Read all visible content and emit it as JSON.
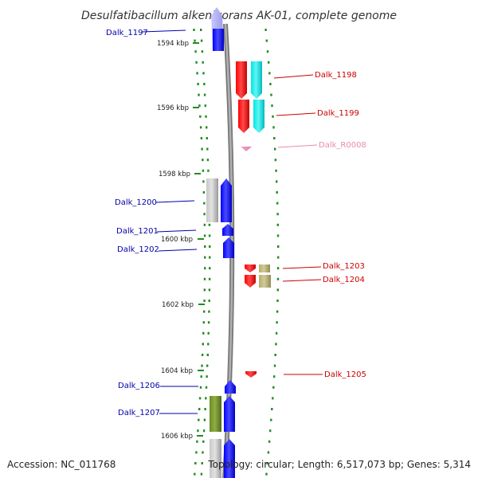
{
  "title": "Desulfatibacillum alkenivorans AK-01, complete genome",
  "footer": {
    "accession": "Accession: NC_011768",
    "topology": "Topology: circular; Length: 6,517,073 bp; Genes: 5,314"
  },
  "ticks": [
    "1594 kbp",
    "1596 kbp",
    "1598 kbp",
    "1600 kbp",
    "1602 kbp",
    "1604 kbp",
    "1606 kbp"
  ],
  "colors": {
    "minus_strand_label": "#0000aa",
    "plus_strand_label": "#cc0000",
    "rna_label": "#e88ab0",
    "blue_gene": "#0000ff",
    "red_gene": "#ff0000",
    "cyan_gene": "#00e5e5",
    "gray_gene": "#b3b3b3",
    "olive_gene": "#6e8b2a",
    "khaki_gene": "#b5ad72",
    "pink_rna": "#f2a6c8",
    "dash_green": "#228b22",
    "backbone": "#888888"
  },
  "genes": [
    {
      "label": "Dalk_1197",
      "strand": "minus"
    },
    {
      "label": "Dalk_1198",
      "strand": "plus"
    },
    {
      "label": "Dalk_1199",
      "strand": "plus"
    },
    {
      "label": "Dalk_R0008",
      "strand": "plus"
    },
    {
      "label": "Dalk_1200",
      "strand": "minus"
    },
    {
      "label": "Dalk_1201",
      "strand": "minus"
    },
    {
      "label": "Dalk_1202",
      "strand": "minus"
    },
    {
      "label": "Dalk_1203",
      "strand": "plus"
    },
    {
      "label": "Dalk_1204",
      "strand": "plus"
    },
    {
      "label": "Dalk_1205",
      "strand": "plus"
    },
    {
      "label": "Dalk_1206",
      "strand": "minus"
    },
    {
      "label": "Dalk_1207",
      "strand": "minus"
    }
  ]
}
